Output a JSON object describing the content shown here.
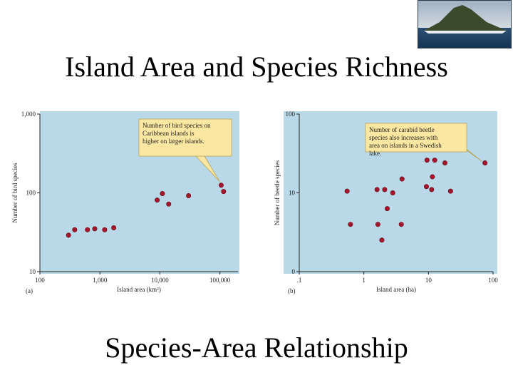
{
  "slide": {
    "title": "Island Area and Species Richness",
    "subtitle": "Species-Area Relationship"
  },
  "chart_data": [
    {
      "type": "scatter",
      "panel_label": "(a)",
      "xlabel": "Island area (km²)",
      "ylabel": "Number of bird species",
      "x_scale": "log",
      "y_scale": "log",
      "xlim": [
        100,
        200000
      ],
      "ylim": [
        10,
        1000
      ],
      "x_ticks": [
        100,
        1000,
        10000,
        100000
      ],
      "x_tick_labels": [
        "100",
        "1,000",
        "10,000",
        "100,000"
      ],
      "y_ticks": [
        10,
        100,
        1000
      ],
      "y_tick_labels": [
        "10",
        "100",
        "1,000"
      ],
      "grid": false,
      "background": "#b9d9e8",
      "point_color": "#a3162b",
      "annotation": "Number of bird species on Caribbean islands is higher on larger islands.",
      "annotation_target": {
        "x": 105000,
        "y": 125
      },
      "points": [
        {
          "x": 300,
          "y": 29
        },
        {
          "x": 380,
          "y": 34
        },
        {
          "x": 620,
          "y": 34
        },
        {
          "x": 820,
          "y": 35
        },
        {
          "x": 1200,
          "y": 34
        },
        {
          "x": 1700,
          "y": 36
        },
        {
          "x": 9000,
          "y": 81
        },
        {
          "x": 11000,
          "y": 98
        },
        {
          "x": 14000,
          "y": 72
        },
        {
          "x": 30000,
          "y": 92
        },
        {
          "x": 105000,
          "y": 125
        },
        {
          "x": 115000,
          "y": 104
        }
      ]
    },
    {
      "type": "scatter",
      "panel_label": "(b)",
      "xlabel": "Island area (ha)",
      "ylabel": "Number of beetle species",
      "x_scale": "log",
      "y_scale": "linear",
      "xlim": [
        0.1,
        100
      ],
      "ylim": [
        0,
        100
      ],
      "x_ticks": [
        0.1,
        1,
        10,
        100
      ],
      "x_tick_labels": [
        ".1",
        "1",
        "10",
        "100"
      ],
      "y_ticks": [
        0,
        10,
        100
      ],
      "y_tick_labels": [
        "0",
        "10",
        "100"
      ],
      "grid": false,
      "background": "#b9d9e8",
      "point_color": "#a3162b",
      "annotation": "Number of carabid beetle species also increases with area on islands in a Swedish lake.",
      "annotation_target": {
        "x": 75,
        "y": 24
      },
      "points": [
        {
          "x": 0.55,
          "y": 10.5
        },
        {
          "x": 0.62,
          "y": 6
        },
        {
          "x": 1.6,
          "y": 11
        },
        {
          "x": 1.65,
          "y": 6
        },
        {
          "x": 1.9,
          "y": 4
        },
        {
          "x": 2.1,
          "y": 11
        },
        {
          "x": 2.3,
          "y": 8
        },
        {
          "x": 2.8,
          "y": 10
        },
        {
          "x": 3.9,
          "y": 15
        },
        {
          "x": 3.8,
          "y": 6
        },
        {
          "x": 9.5,
          "y": 26
        },
        {
          "x": 9.3,
          "y": 12
        },
        {
          "x": 11.5,
          "y": 16
        },
        {
          "x": 11.2,
          "y": 11
        },
        {
          "x": 12.5,
          "y": 26
        },
        {
          "x": 18,
          "y": 24
        },
        {
          "x": 22,
          "y": 10.5
        },
        {
          "x": 75,
          "y": 24
        }
      ]
    }
  ]
}
